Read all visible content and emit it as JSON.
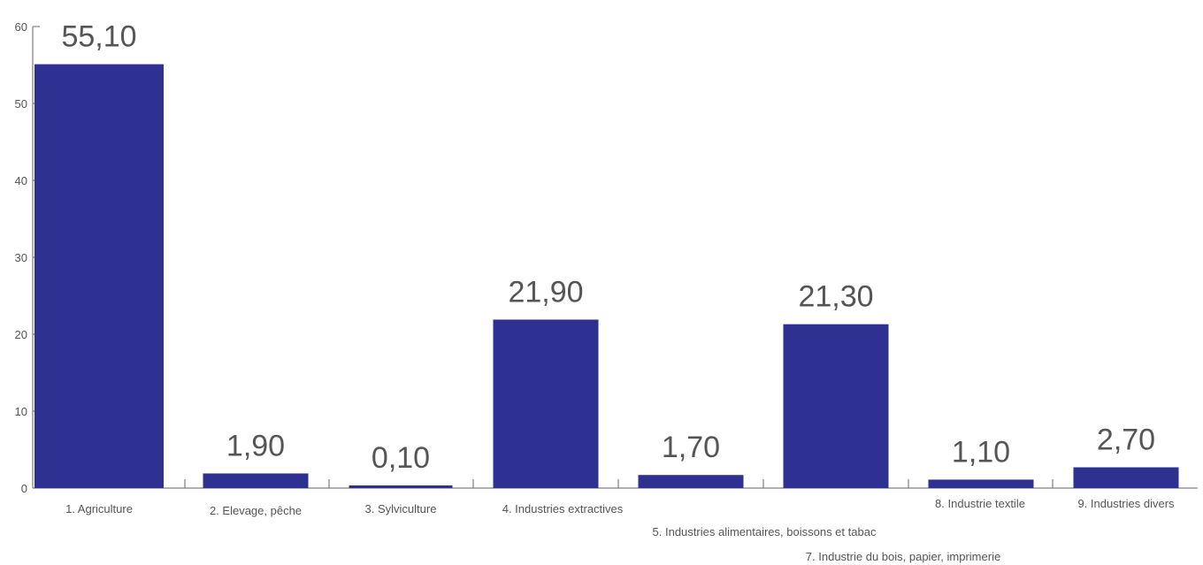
{
  "chart_data": {
    "type": "bar",
    "title": "",
    "xlabel": "",
    "ylabel": "",
    "ylim": [
      0,
      60
    ],
    "yticks": [
      0,
      10,
      20,
      30,
      40,
      50,
      60
    ],
    "grid": false,
    "legend": "none",
    "bar_color": "#2e3192",
    "axis_color": "#666666",
    "categories": [
      "1. Agriculture",
      "2. Elevage, pêche",
      "3. Sylviculture",
      "4. Industries extractives",
      "5. Industries alimentaires, boissons et tabac",
      "7. Industrie du bois, papier, imprimerie",
      "8. Industrie textile",
      "9. Industries divers"
    ],
    "values": [
      55.1,
      1.9,
      0.1,
      21.9,
      1.7,
      21.3,
      1.1,
      2.7
    ],
    "value_labels": [
      "55,10",
      "1,90",
      "0,10",
      "21,90",
      "1,70",
      "21,30",
      "1,10",
      "2,70"
    ]
  }
}
